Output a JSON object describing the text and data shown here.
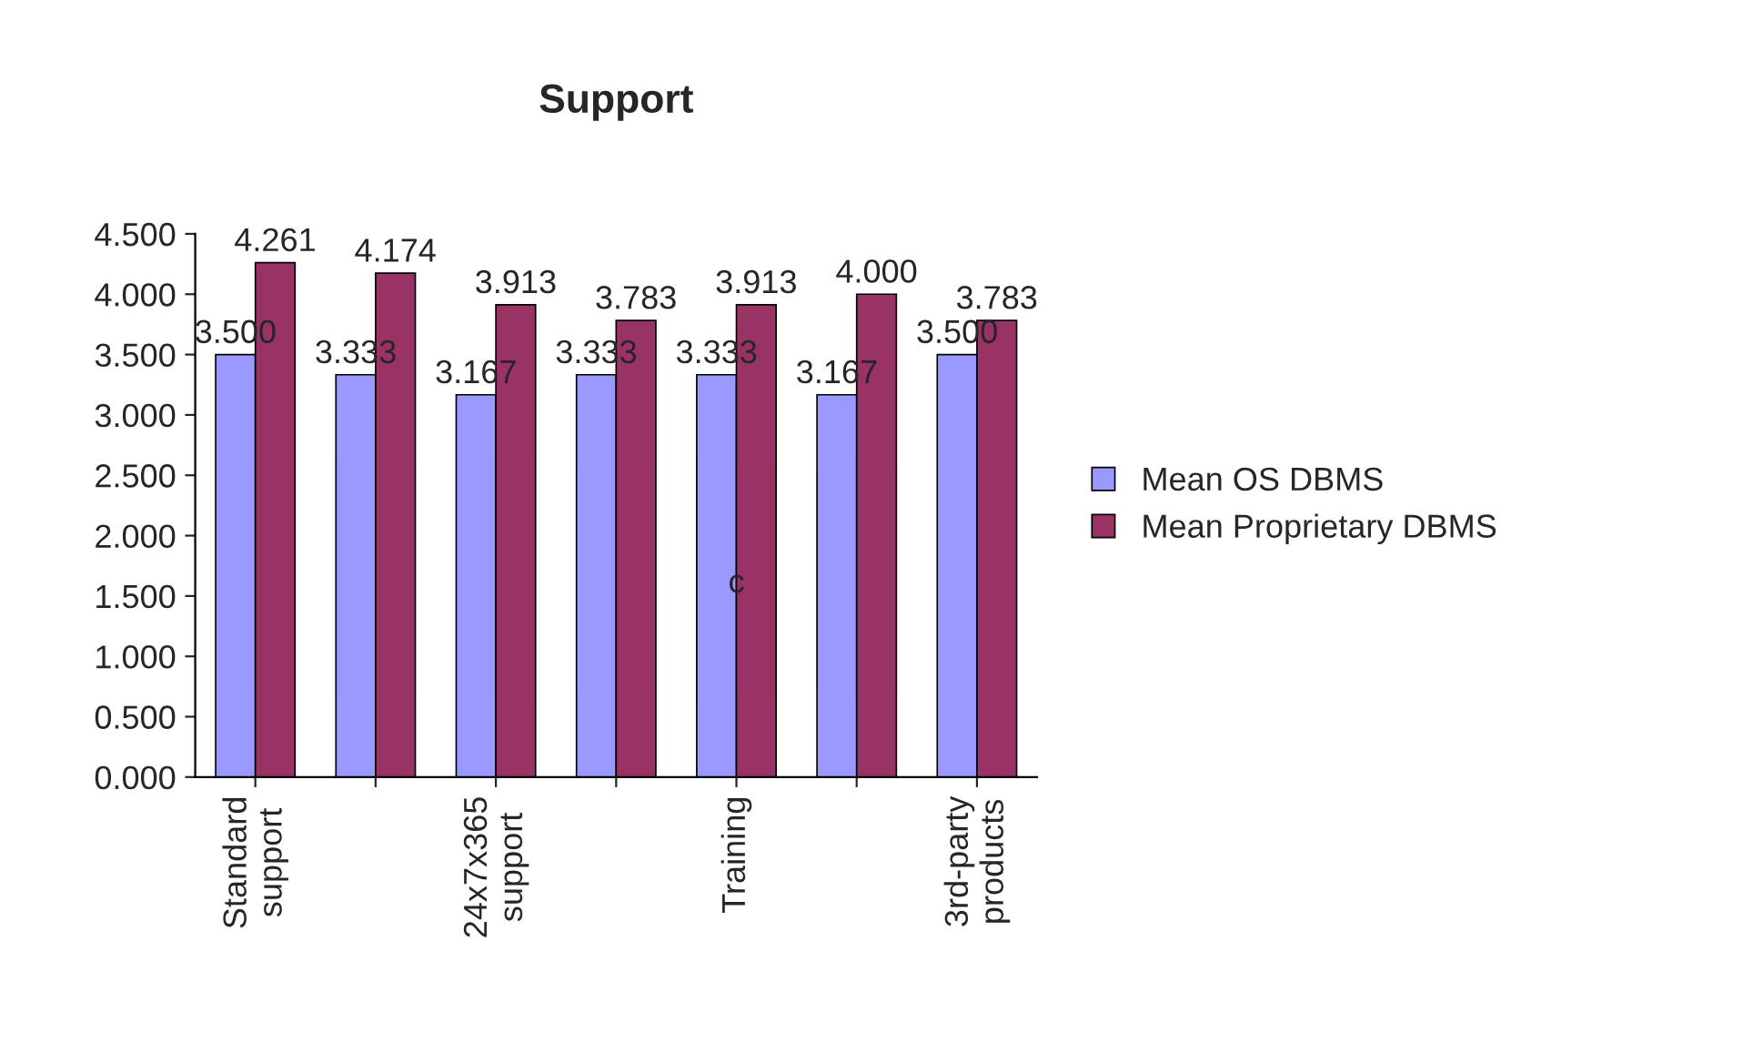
{
  "chart_data": {
    "type": "bar",
    "title": "Support",
    "categories": [
      "Standard support",
      null,
      "24x7x365 support",
      null,
      "Training",
      null,
      "3rd-party products"
    ],
    "series": [
      {
        "name": "Mean OS DBMS",
        "color": "#9999ff",
        "values": [
          3.5,
          3.333,
          3.167,
          3.333,
          3.333,
          3.167,
          3.5
        ],
        "value_labels": [
          "3.500",
          "3.333",
          "3.167",
          "3.333",
          "3.333",
          "3.167",
          "3.500"
        ]
      },
      {
        "name": "Mean Proprietary DBMS",
        "color": "#993366",
        "values": [
          4.261,
          4.174,
          3.913,
          3.783,
          3.913,
          4.0,
          3.783
        ],
        "value_labels": [
          "4.261",
          "4.174",
          "3.913",
          "3.783",
          "3.913",
          "4.000",
          "3.783"
        ]
      }
    ],
    "ylim": [
      0,
      4.5
    ],
    "yticks": [
      {
        "value": 0,
        "label": "0.000"
      },
      {
        "value": 0.5,
        "label": "0.500"
      },
      {
        "value": 1,
        "label": "1.000"
      },
      {
        "value": 1.5,
        "label": "1.500"
      },
      {
        "value": 2,
        "label": "2.000"
      },
      {
        "value": 2.5,
        "label": "2.500"
      },
      {
        "value": 3,
        "label": "3.000"
      },
      {
        "value": 3.5,
        "label": "3.500"
      },
      {
        "value": 4,
        "label": "4.000"
      },
      {
        "value": 4.5,
        "label": "4.500"
      }
    ],
    "annotations": [
      {
        "text": "c",
        "x": "Training",
        "y": 1.6
      }
    ],
    "legend": "right",
    "grid": false
  }
}
